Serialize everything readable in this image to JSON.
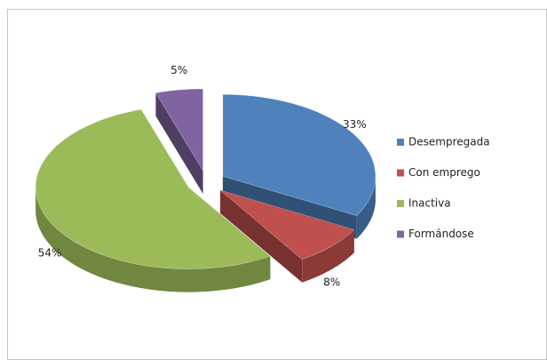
{
  "chart_data": {
    "type": "pie3d",
    "categories": [
      "Desempregada",
      "Con emprego",
      "Inactiva",
      "Formándose"
    ],
    "values": [
      33,
      8,
      54,
      5
    ],
    "value_labels": [
      "33%",
      "8%",
      "54%",
      "5%"
    ],
    "colors": [
      "#4f81bd",
      "#c0504d",
      "#9bbb59",
      "#8064a2"
    ],
    "legend": "right"
  }
}
